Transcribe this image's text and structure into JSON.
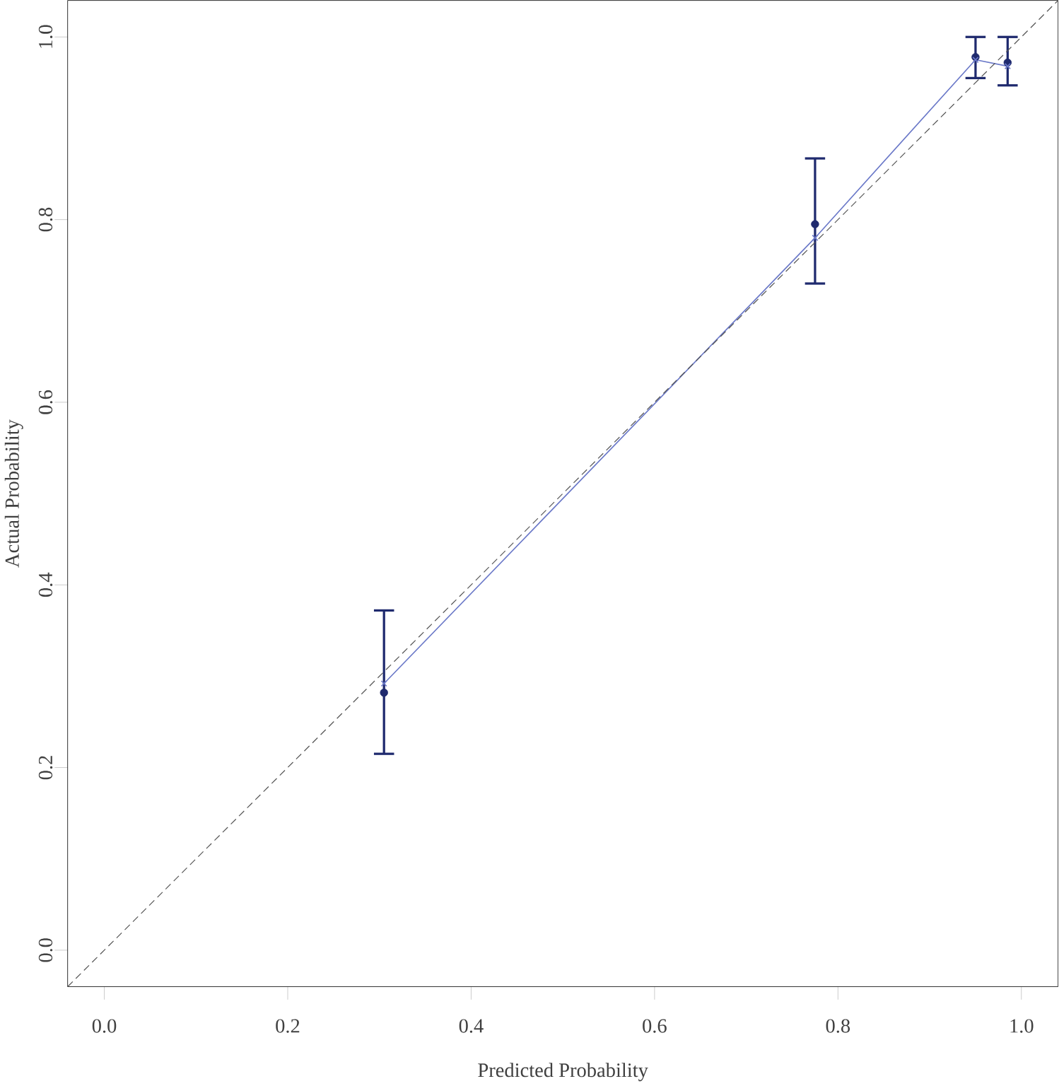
{
  "chart_data": {
    "type": "scatter",
    "xlabel": "Predicted Probability",
    "ylabel": "Actual Probability",
    "xlim": [
      -0.04,
      1.04
    ],
    "ylim": [
      -0.04,
      1.04
    ],
    "xticks": [
      {
        "value": 0,
        "label": "0.0"
      },
      0.2,
      0.4,
      0.6,
      0.8,
      {
        "value": 1,
        "label": "1.0"
      }
    ],
    "yticks": [
      {
        "value": 0,
        "label": "0.0"
      },
      0.2,
      0.4,
      0.6,
      0.8,
      {
        "value": 1,
        "label": "1.0"
      }
    ],
    "grid": false,
    "series": [
      {
        "color": "#1f2a6e",
        "marker": "circle",
        "x": [
          0.305,
          0.775,
          0.95,
          0.985
        ],
        "values": [
          0.282,
          0.795,
          0.978,
          0.972
        ],
        "errors": [
          [
            0.215,
            0.372
          ],
          [
            0.73,
            0.867
          ],
          [
            0.955,
            1.0
          ],
          [
            0.947,
            1.0
          ]
        ]
      },
      {
        "type": "line",
        "color": "#6a78c8",
        "marker": "cross",
        "line_style": "solid",
        "x": [
          0.305,
          0.775,
          0.95,
          0.985
        ],
        "values": [
          0.292,
          0.78,
          0.975,
          0.968
        ]
      },
      {
        "type": "line",
        "color": "#555555",
        "marker": "none",
        "line_style": "dashed",
        "x": [
          -0.04,
          1.04
        ],
        "values": [
          -0.04,
          1.04
        ]
      }
    ]
  }
}
